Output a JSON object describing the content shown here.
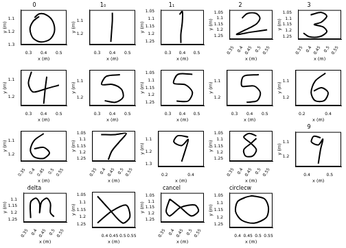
{
  "chart_data": [
    {
      "type": "line",
      "title": "0",
      "x_label": "x (m)",
      "y_label": "y (m)",
      "xlim": [
        0.25,
        0.55
      ],
      "ylim": [
        1.3,
        1.03
      ],
      "xticks": [
        0.3,
        0.4,
        0.5
      ],
      "yticks": [
        1.1,
        1.2,
        1.3
      ],
      "grid": false,
      "series": [
        {
          "color": "#000000",
          "x": [
            0.37,
            0.33,
            0.31,
            0.33,
            0.38,
            0.44,
            0.47,
            0.46,
            0.42,
            0.37,
            0.34
          ],
          "y": [
            1.08,
            1.12,
            1.18,
            1.25,
            1.28,
            1.26,
            1.2,
            1.12,
            1.07,
            1.06,
            1.09
          ]
        }
      ]
    },
    {
      "type": "line",
      "title": "1₀",
      "x_label": "x (m)",
      "y_label": "y (m)",
      "xlim": [
        0.25,
        0.55
      ],
      "ylim": [
        1.28,
        1.02
      ],
      "xticks": [
        0.3,
        0.4,
        0.5
      ],
      "yticks": [
        1.1,
        1.2
      ],
      "grid": false,
      "series": [
        {
          "color": "#000000",
          "x": [
            0.4,
            0.4,
            0.395,
            0.39
          ],
          "y": [
            1.04,
            1.1,
            1.18,
            1.26
          ]
        }
      ]
    },
    {
      "type": "line",
      "title": "1₁",
      "x_label": "x (m)",
      "y_label": "y (m)",
      "xlim": [
        0.25,
        0.55
      ],
      "ylim": [
        1.27,
        1.04
      ],
      "xticks": [
        0.3,
        0.4,
        0.5
      ],
      "yticks": [
        1.05,
        1.1,
        1.15,
        1.2,
        1.25
      ],
      "grid": false,
      "series": [
        {
          "color": "#000000",
          "x": [
            0.38,
            0.4,
            0.4,
            0.39,
            0.39
          ],
          "y": [
            1.07,
            1.05,
            1.12,
            1.2,
            1.26
          ]
        }
      ]
    },
    {
      "type": "line",
      "title": "2",
      "x_label": "x (m)",
      "y_label": "y (m)",
      "xlim": [
        0.33,
        0.57
      ],
      "ylim": [
        1.28,
        1.03
      ],
      "xticks": [
        0.35,
        0.4,
        0.45,
        0.5,
        0.55
      ],
      "yticks": [
        1.05,
        1.1,
        1.15,
        1.2,
        1.25
      ],
      "grid": false,
      "series": [
        {
          "color": "#000000",
          "x": [
            0.4,
            0.43,
            0.48,
            0.5,
            0.48,
            0.42,
            0.37,
            0.45,
            0.54
          ],
          "y": [
            1.1,
            1.06,
            1.06,
            1.1,
            1.15,
            1.2,
            1.24,
            1.22,
            1.2
          ]
        }
      ]
    },
    {
      "type": "line",
      "title": "3",
      "x_label": "x (m)",
      "y_label": "y (m)",
      "xlim": [
        0.33,
        0.57
      ],
      "ylim": [
        1.27,
        1.03
      ],
      "xticks": [
        0.35,
        0.4,
        0.45,
        0.5,
        0.55
      ],
      "yticks": [
        1.05,
        1.1,
        1.15,
        1.2,
        1.25
      ],
      "grid": false,
      "series": [
        {
          "color": "#000000",
          "x": [
            0.4,
            0.46,
            0.49,
            0.46,
            0.42,
            0.47,
            0.49,
            0.45,
            0.39,
            0.36
          ],
          "y": [
            1.07,
            1.05,
            1.08,
            1.13,
            1.15,
            1.17,
            1.21,
            1.25,
            1.25,
            1.22
          ]
        }
      ]
    },
    {
      "type": "line",
      "title": null,
      "x_label": "x (m)",
      "y_label": "y (m)",
      "xlim": [
        0.25,
        0.55
      ],
      "ylim": [
        1.25,
        1.04
      ],
      "xticks": [
        0.3,
        0.4,
        0.5
      ],
      "yticks": [
        1.1,
        1.2
      ],
      "grid": false,
      "series": [
        {
          "color": "#000000",
          "x": [
            0.32,
            0.3,
            0.33,
            0.42,
            0.5,
            null,
            0.42,
            0.41,
            0.4
          ],
          "y": [
            1.05,
            1.12,
            1.17,
            1.15,
            1.13,
            null,
            1.08,
            1.15,
            1.24
          ]
        }
      ]
    },
    {
      "type": "line",
      "title": null,
      "x_label": "x (m)",
      "y_label": "y (m)",
      "xlim": [
        0.25,
        0.55
      ],
      "ylim": [
        1.25,
        1.03
      ],
      "xticks": [
        0.3,
        0.4,
        0.5
      ],
      "yticks": [
        1.1,
        1.2
      ],
      "grid": false,
      "series": [
        {
          "color": "#000000",
          "x": [
            0.45,
            0.36,
            0.33,
            0.4,
            0.46,
            0.47,
            0.42,
            0.35
          ],
          "y": [
            1.06,
            1.07,
            1.12,
            1.12,
            1.15,
            1.2,
            1.23,
            1.22
          ]
        }
      ]
    },
    {
      "type": "line",
      "title": null,
      "x_label": "x (m)",
      "y_label": "y (m)",
      "xlim": [
        0.25,
        0.55
      ],
      "ylim": [
        1.27,
        1.03
      ],
      "xticks": [
        0.3,
        0.4,
        0.5
      ],
      "yticks": [
        1.05,
        1.1,
        1.15,
        1.2,
        1.25
      ],
      "grid": false,
      "series": [
        {
          "color": "#000000",
          "x": [
            0.47,
            0.37,
            0.34,
            0.42,
            0.47,
            0.44,
            0.36
          ],
          "y": [
            1.06,
            1.06,
            1.12,
            1.13,
            1.18,
            1.24,
            1.24
          ]
        }
      ]
    },
    {
      "type": "line",
      "title": null,
      "x_label": "x (m)",
      "y_label": "y (m)",
      "xlim": [
        0.25,
        0.55
      ],
      "ylim": [
        1.25,
        1.03
      ],
      "xticks": [
        0.3,
        0.4,
        0.5
      ],
      "yticks": [
        1.1,
        1.2
      ],
      "grid": false,
      "series": [
        {
          "color": "#000000",
          "x": [
            0.46,
            0.36,
            0.35,
            0.43,
            0.47,
            0.45,
            0.38
          ],
          "y": [
            1.06,
            1.07,
            1.13,
            1.13,
            1.17,
            1.22,
            1.23
          ]
        }
      ]
    },
    {
      "type": "line",
      "title": null,
      "x_label": "x (m)",
      "y_label": "y (m)",
      "xlim": [
        0.15,
        0.5
      ],
      "ylim": [
        1.25,
        1.03
      ],
      "xticks": [
        0.2,
        0.4
      ],
      "yticks": [
        1.1,
        1.2
      ],
      "grid": false,
      "series": [
        {
          "color": "#000000",
          "x": [
            0.38,
            0.3,
            0.27,
            0.3,
            0.37,
            0.4,
            0.35,
            0.29
          ],
          "y": [
            1.05,
            1.1,
            1.17,
            1.22,
            1.22,
            1.17,
            1.14,
            1.16
          ]
        }
      ]
    },
    {
      "type": "line",
      "title": null,
      "x_label": "x (m)",
      "y_label": "y (m)",
      "xlim": [
        0.33,
        0.57
      ],
      "ylim": [
        1.25,
        1.03
      ],
      "xticks": [
        0.35,
        0.4,
        0.45,
        0.5,
        0.55
      ],
      "yticks": [
        1.1,
        1.2
      ],
      "grid": false,
      "series": [
        {
          "color": "#000000",
          "x": [
            0.45,
            0.4,
            0.38,
            0.4,
            0.45,
            0.48,
            0.45,
            0.4
          ],
          "y": [
            1.05,
            1.1,
            1.17,
            1.22,
            1.23,
            1.19,
            1.15,
            1.16
          ]
        }
      ]
    },
    {
      "type": "line",
      "title": null,
      "x_label": "x (m)",
      "y_label": "y (m)",
      "xlim": [
        0.33,
        0.57
      ],
      "ylim": [
        1.27,
        1.03
      ],
      "xticks": [
        0.35,
        0.4,
        0.45,
        0.5,
        0.55
      ],
      "yticks": [
        1.05,
        1.1,
        1.15,
        1.2,
        1.25
      ],
      "grid": false,
      "series": [
        {
          "color": "#000000",
          "x": [
            0.38,
            0.46,
            0.52,
            0.48,
            0.44,
            0.42
          ],
          "y": [
            1.06,
            1.06,
            1.05,
            1.12,
            1.19,
            1.26
          ]
        }
      ]
    },
    {
      "type": "line",
      "title": null,
      "x_label": "x (m)",
      "y_label": "y (m)",
      "xlim": [
        0.15,
        0.5
      ],
      "ylim": [
        1.32,
        1.03
      ],
      "xticks": [
        0.2,
        0.4
      ],
      "yticks": [
        1.1,
        1.2,
        1.3
      ],
      "grid": false,
      "series": [
        {
          "color": "#000000",
          "x": [
            0.38,
            0.3,
            0.27,
            0.33,
            0.38,
            0.36,
            0.33
          ],
          "y": [
            1.08,
            1.07,
            1.12,
            1.15,
            1.1,
            1.18,
            1.28
          ]
        }
      ]
    },
    {
      "type": "line",
      "title": null,
      "x_label": "x (m)",
      "y_label": "y (m)",
      "xlim": [
        0.33,
        0.57
      ],
      "ylim": [
        1.27,
        1.03
      ],
      "xticks": [
        0.35,
        0.4,
        0.45,
        0.5,
        0.55
      ],
      "yticks": [
        1.05,
        1.1,
        1.15,
        1.2,
        1.25
      ],
      "grid": false,
      "series": [
        {
          "color": "#000000",
          "x": [
            0.48,
            0.44,
            0.41,
            0.45,
            0.48,
            0.46,
            0.42,
            0.41,
            0.45,
            0.48
          ],
          "y": [
            1.07,
            1.05,
            1.08,
            1.13,
            1.18,
            1.23,
            1.23,
            1.18,
            1.13,
            1.09
          ]
        }
      ]
    },
    {
      "type": "line",
      "title": "9",
      "x_label": "x (m)",
      "y_label": "y (m)",
      "xlim": [
        0.35,
        0.55
      ],
      "ylim": [
        1.27,
        1.03
      ],
      "xticks": [
        0.4,
        0.5
      ],
      "yticks": [
        1.1,
        1.2
      ],
      "grid": false,
      "series": [
        {
          "color": "#000000",
          "x": [
            0.46,
            0.43,
            0.42,
            0.45,
            0.47,
            0.46,
            0.45
          ],
          "y": [
            1.07,
            1.06,
            1.1,
            1.12,
            1.08,
            1.15,
            1.25
          ]
        }
      ]
    },
    {
      "type": "line",
      "title": "delta",
      "x_label": "x (m)",
      "y_label": "y (m)",
      "xlim": [
        0.33,
        0.57
      ],
      "ylim": [
        1.27,
        1.05
      ],
      "xticks": [
        0.35,
        0.4,
        0.45,
        0.5,
        0.55
      ],
      "yticks": [
        1.1,
        1.15,
        1.2,
        1.25
      ],
      "grid": false,
      "series": [
        {
          "color": "#000000",
          "x": [
            0.37,
            0.37,
            0.4,
            0.42,
            0.42,
            0.43,
            0.46,
            0.48,
            0.48,
            0.5
          ],
          "y": [
            1.24,
            1.12,
            1.09,
            1.13,
            1.2,
            1.12,
            1.09,
            1.13,
            1.2,
            1.23
          ]
        }
      ]
    },
    {
      "type": "line",
      "title": null,
      "x_label": "x (m)",
      "y_label": "y (m)",
      "xlim": [
        0.33,
        0.57
      ],
      "ylim": [
        1.27,
        1.03
      ],
      "xticks": [
        0.4,
        0.45,
        0.5,
        0.55
      ],
      "yticks": [
        1.05,
        1.1,
        1.15,
        1.2,
        1.25
      ],
      "grid": false,
      "series": [
        {
          "color": "#000000",
          "x": [
            0.36,
            0.42,
            0.5,
            0.54,
            0.52,
            0.44,
            0.36
          ],
          "y": [
            1.06,
            1.14,
            1.24,
            1.2,
            1.12,
            1.16,
            1.24
          ]
        }
      ]
    },
    {
      "type": "line",
      "title": "cancel",
      "x_label": "x (m)",
      "y_label": "y (m)",
      "xlim": [
        0.33,
        0.57
      ],
      "ylim": [
        1.27,
        1.03
      ],
      "xticks": [
        0.35,
        0.4,
        0.45,
        0.5,
        0.55
      ],
      "yticks": [
        1.05,
        1.1,
        1.15,
        1.2,
        1.25
      ],
      "grid": false,
      "series": [
        {
          "color": "#000000",
          "x": [
            0.38,
            0.44,
            0.5,
            0.54,
            0.52,
            0.44,
            0.38,
            0.36,
            0.38
          ],
          "y": [
            1.08,
            1.15,
            1.22,
            1.18,
            1.13,
            1.15,
            1.22,
            1.18,
            1.08
          ]
        }
      ]
    },
    {
      "type": "line",
      "title": "circlecw",
      "x_label": "x (m)",
      "y_label": "y (m)",
      "xlim": [
        0.36,
        0.57
      ],
      "ylim": [
        1.27,
        1.03
      ],
      "xticks": [
        0.4,
        0.45,
        0.5,
        0.55
      ],
      "yticks": [
        1.05,
        1.1,
        1.15,
        1.2,
        1.25
      ],
      "grid": false,
      "series": [
        {
          "color": "#000000",
          "x": [
            0.47,
            0.53,
            0.55,
            0.54,
            0.48,
            0.42,
            0.39,
            0.4,
            0.44,
            0.47
          ],
          "y": [
            1.05,
            1.07,
            1.13,
            1.2,
            1.24,
            1.22,
            1.16,
            1.09,
            1.06,
            1.05
          ]
        }
      ]
    }
  ]
}
